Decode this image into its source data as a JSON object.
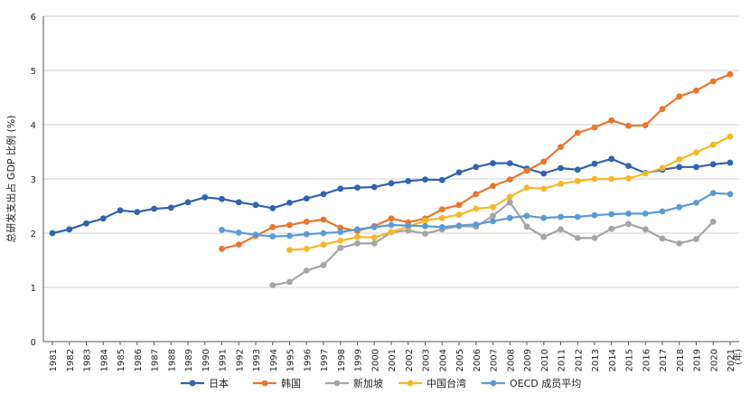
{
  "chart_data": {
    "type": "line",
    "title": "",
    "xlabel": "(年)",
    "ylabel": "总研发支出占 GDP 比例 (%)",
    "ylim": [
      0,
      6
    ],
    "yticks": [
      "0",
      "1",
      "2",
      "3",
      "4",
      "5",
      "6"
    ],
    "x": [
      "1981",
      "1982",
      "1983",
      "1984",
      "1985",
      "1986",
      "1987",
      "1988",
      "1989",
      "1990",
      "1991",
      "1992",
      "1993",
      "1994",
      "1995",
      "1996",
      "1997",
      "1998",
      "1999",
      "2000",
      "2001",
      "2002",
      "2003",
      "2004",
      "2005",
      "2006",
      "2007",
      "2008",
      "2009",
      "2010",
      "2011",
      "2012",
      "2013",
      "2014",
      "2015",
      "2016",
      "2017",
      "2018",
      "2019",
      "2020",
      "2021"
    ],
    "grid": true,
    "legend_position": "bottom",
    "series": [
      {
        "name": "日本",
        "color": "#2e64b0",
        "values": [
          2.0,
          2.07,
          2.18,
          2.27,
          2.42,
          2.39,
          2.45,
          2.47,
          2.57,
          2.66,
          2.63,
          2.57,
          2.52,
          2.46,
          2.56,
          2.64,
          2.72,
          2.82,
          2.84,
          2.85,
          2.92,
          2.96,
          2.99,
          2.98,
          3.12,
          3.22,
          3.29,
          3.29,
          3.19,
          3.1,
          3.2,
          3.17,
          3.28,
          3.37,
          3.24,
          3.11,
          3.17,
          3.22,
          3.22,
          3.27,
          3.3
        ]
      },
      {
        "name": "韩国",
        "color": "#e8772e",
        "values": [
          null,
          null,
          null,
          null,
          null,
          null,
          null,
          null,
          null,
          null,
          1.71,
          1.79,
          1.95,
          2.11,
          2.15,
          2.21,
          2.25,
          2.1,
          2.04,
          2.13,
          2.27,
          2.2,
          2.27,
          2.44,
          2.52,
          2.72,
          2.87,
          2.99,
          3.15,
          3.32,
          3.59,
          3.85,
          3.95,
          4.08,
          3.98,
          3.99,
          4.29,
          4.52,
          4.63,
          4.8,
          4.93
        ]
      },
      {
        "name": "新加坡",
        "color": "#a5a5a5",
        "values": [
          null,
          null,
          null,
          null,
          null,
          null,
          null,
          null,
          null,
          null,
          null,
          null,
          null,
          1.04,
          1.1,
          1.31,
          1.41,
          1.73,
          1.81,
          1.81,
          2.02,
          2.05,
          1.99,
          2.07,
          2.13,
          2.12,
          2.32,
          2.57,
          2.12,
          1.93,
          2.07,
          1.91,
          1.91,
          2.08,
          2.17,
          2.07,
          1.9,
          1.81,
          1.89,
          2.21,
          null
        ]
      },
      {
        "name": "中国台湾",
        "color": "#f5b72a",
        "values": [
          null,
          null,
          null,
          null,
          null,
          null,
          null,
          null,
          null,
          null,
          null,
          null,
          null,
          null,
          1.69,
          1.71,
          1.79,
          1.86,
          1.93,
          1.92,
          2.02,
          2.12,
          2.23,
          2.28,
          2.34,
          2.45,
          2.48,
          2.67,
          2.84,
          2.82,
          2.91,
          2.96,
          3.0,
          3.0,
          3.01,
          3.1,
          3.2,
          3.36,
          3.49,
          3.63,
          3.78
        ]
      },
      {
        "name": "OECD 成员平均",
        "color": "#5b9bd5",
        "values": [
          null,
          null,
          null,
          null,
          null,
          null,
          null,
          null,
          null,
          null,
          2.06,
          2.01,
          1.97,
          1.94,
          1.95,
          1.98,
          2.0,
          2.02,
          2.07,
          2.11,
          2.15,
          2.14,
          2.13,
          2.11,
          2.14,
          2.16,
          2.22,
          2.28,
          2.32,
          2.28,
          2.3,
          2.3,
          2.33,
          2.35,
          2.36,
          2.36,
          2.4,
          2.48,
          2.56,
          2.74,
          2.72
        ]
      }
    ]
  }
}
